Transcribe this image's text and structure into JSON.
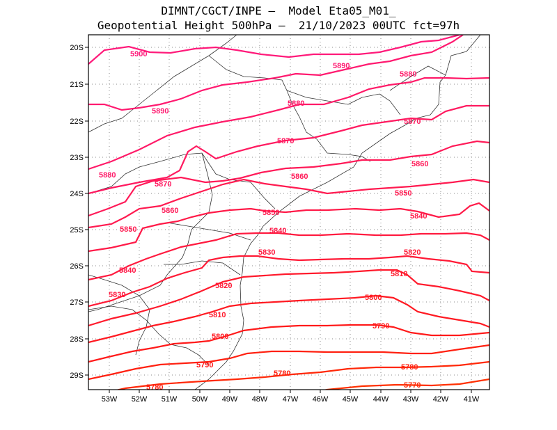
{
  "header": {
    "line1": "DIMNT/CGCT/INPE –  Model Eta05_M01_",
    "line2": "Geopotential Height 500hPa –  21/10/2023 00UTC fct=97h"
  },
  "map": {
    "lon_range": [
      -53.6,
      -40.5
    ],
    "lat_range": [
      -20.0,
      -29.4
    ],
    "lon_ticks": [
      "53W",
      "52W",
      "51W",
      "50W",
      "49W",
      "48W",
      "47W",
      "46W",
      "45W",
      "44W",
      "43W",
      "42W",
      "41W"
    ],
    "lat_ticks": [
      "20S",
      "21S",
      "22S",
      "23S",
      "24S",
      "25S",
      "26S",
      "27S",
      "28S",
      "29S"
    ],
    "contour_interval": 10,
    "units": "gpm",
    "contour_labels": [
      "5900",
      "5890",
      "5890",
      "5880",
      "5880",
      "5880",
      "5870",
      "5870",
      "5870",
      "5860",
      "5860",
      "5860",
      "5850",
      "5850",
      "5850",
      "5840",
      "5840",
      "5840",
      "5830",
      "5830",
      "5820",
      "5820",
      "5810",
      "5810",
      "5800",
      "5800",
      "5790",
      "5790",
      "5780",
      "5780",
      "5780",
      "5770"
    ]
  }
}
